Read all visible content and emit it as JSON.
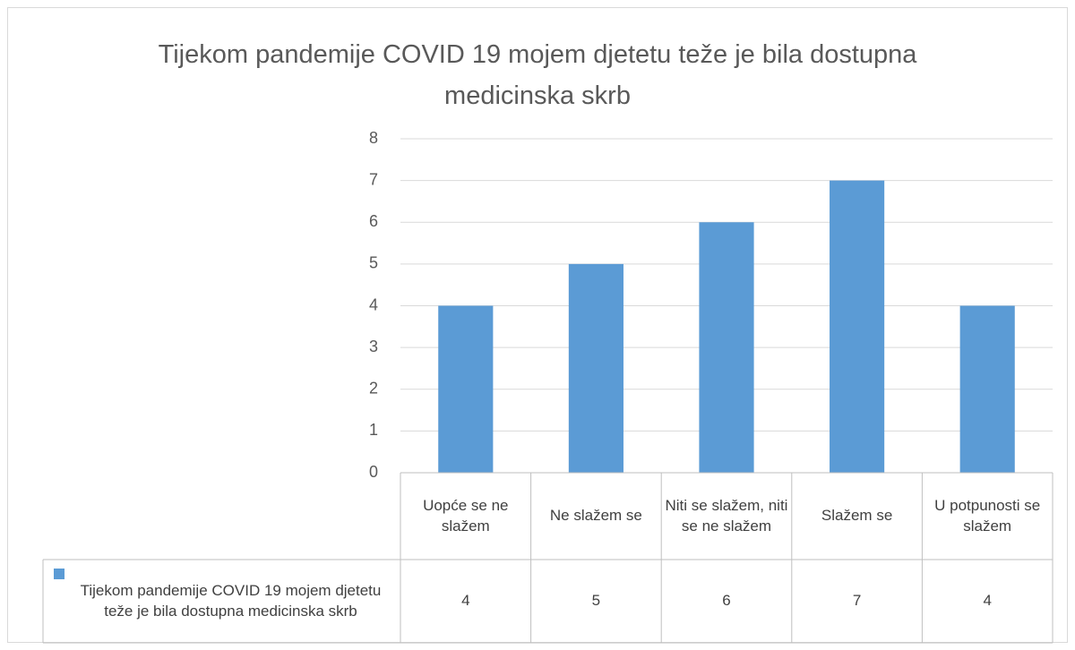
{
  "chart_data": {
    "type": "bar",
    "title": "Tijekom pandemije COVID 19 mojem djetetu teže je bila dostupna medicinska skrb",
    "categories": [
      "Uopće se ne slažem",
      "Ne slažem se",
      "Niti se slažem, niti se ne slažem",
      "Slažem se",
      "U potpunosti se slažem"
    ],
    "series": [
      {
        "name": "Tijekom pandemije COVID 19 mojem djetetu teže je bila dostupna medicinska skrb",
        "color": "#5b9bd5",
        "values": [
          4,
          5,
          6,
          7,
          4
        ]
      }
    ],
    "ylim": [
      0,
      8
    ],
    "yticks": [
      0,
      1,
      2,
      3,
      4,
      5,
      6,
      7,
      8
    ],
    "grid": true,
    "data_table": true
  }
}
